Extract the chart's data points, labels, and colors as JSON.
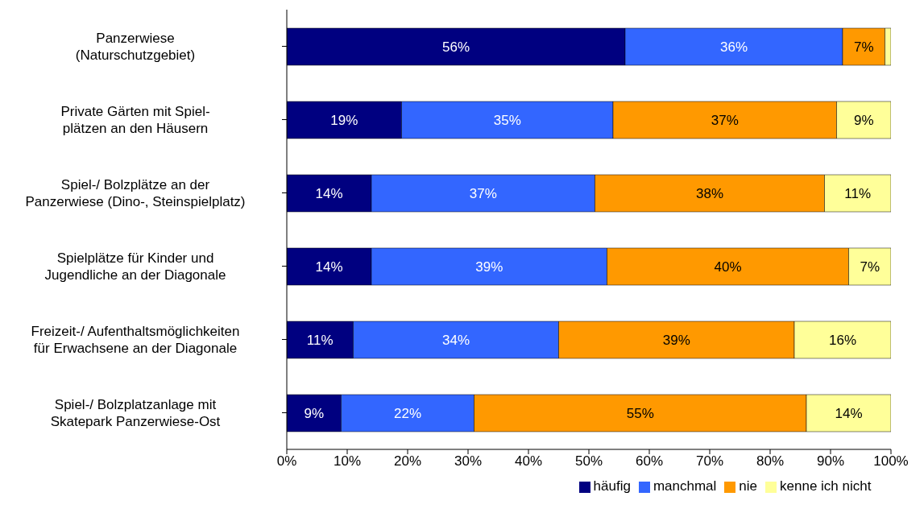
{
  "chart_data": {
    "type": "bar",
    "orientation": "horizontal",
    "stacked": true,
    "categories": [
      "Panzerwiese\n(Naturschutzgebiet)",
      "Private Gärten mit Spiel-\nplätzen an den Häusern",
      "Spiel-/ Bolzplätze an der\nPanzerwiese (Dino-, Steinspielplatz)",
      "Spielplätze für Kinder und\nJugendliche an der Diagonale",
      "Freizeit-/ Aufenthaltsmöglichkeiten\nfür Erwachsene an der Diagonale",
      "Spiel-/ Bolzplatzanlage mit\nSkatepark Panzerwiese-Ost"
    ],
    "series": [
      {
        "name": "häufig",
        "color": "#000080",
        "values": [
          56,
          19,
          14,
          14,
          11,
          9
        ],
        "value_labels": [
          "56%",
          "19%",
          "14%",
          "14%",
          "11%",
          "9%"
        ]
      },
      {
        "name": "manchmal",
        "color": "#3366ff",
        "values": [
          36,
          35,
          37,
          39,
          34,
          22
        ],
        "value_labels": [
          "36%",
          "35%",
          "37%",
          "39%",
          "34%",
          "22%"
        ]
      },
      {
        "name": "nie",
        "color": "#ff9900",
        "values": [
          7,
          37,
          38,
          40,
          39,
          55
        ],
        "value_labels": [
          "7%",
          "37%",
          "38%",
          "40%",
          "39%",
          "55%"
        ]
      },
      {
        "name": "kenne ich nicht",
        "color": "#ffff99",
        "values": [
          1,
          9,
          11,
          7,
          16,
          14
        ],
        "value_labels": [
          null,
          "9%",
          "11%",
          "7%",
          "16%",
          "14%"
        ]
      }
    ],
    "xlim": [
      0,
      100
    ],
    "xticks": [
      {
        "value": 0,
        "label": "0%"
      },
      {
        "value": 10,
        "label": "10%"
      },
      {
        "value": 20,
        "label": "20%"
      },
      {
        "value": 30,
        "label": "30%"
      },
      {
        "value": 40,
        "label": "40%"
      },
      {
        "value": 50,
        "label": "50%"
      },
      {
        "value": 60,
        "label": "60%"
      },
      {
        "value": 70,
        "label": "70%"
      },
      {
        "value": 80,
        "label": "80%"
      },
      {
        "value": 90,
        "label": "90%"
      },
      {
        "value": 100,
        "label": "100%"
      }
    ],
    "grid": false,
    "legend": "bottom"
  }
}
